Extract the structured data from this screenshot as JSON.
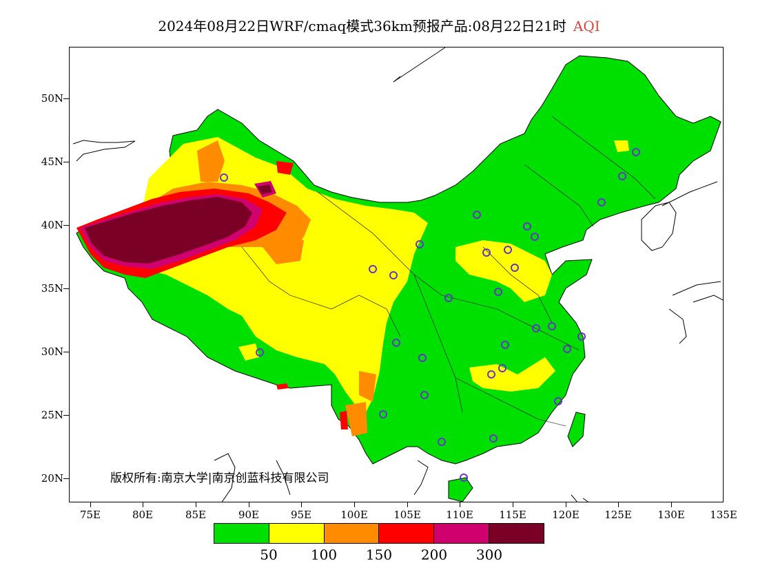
{
  "title": {
    "main": "2024年08月22日WRF/cmaq模式36km预报产品:08月22日21时",
    "variable": "AQI"
  },
  "axes": {
    "lat_labels": [
      "50N",
      "45N",
      "40N",
      "35N",
      "30N",
      "25N",
      "20N"
    ],
    "lon_labels": [
      "75E",
      "80E",
      "85E",
      "90E",
      "95E",
      "100E",
      "105E",
      "110E",
      "115E",
      "120E",
      "125E",
      "130E",
      "135E"
    ]
  },
  "copyright": "版权所有:南京大学|南京创蓝科技有限公司",
  "legend": {
    "colors": [
      "#00e000",
      "#ffff00",
      "#ff8c00",
      "#ff0000",
      "#d0006f",
      "#7a0025"
    ],
    "labels": [
      "50",
      "100",
      "150",
      "200",
      "300"
    ]
  },
  "layer_colors": {
    "good": "#00e000",
    "moderate": "#ffff00",
    "usg": "#ff8c00",
    "unhealthy": "#ff0000",
    "very_unhealthy": "#d0006f",
    "hazardous": "#7a0025"
  }
}
